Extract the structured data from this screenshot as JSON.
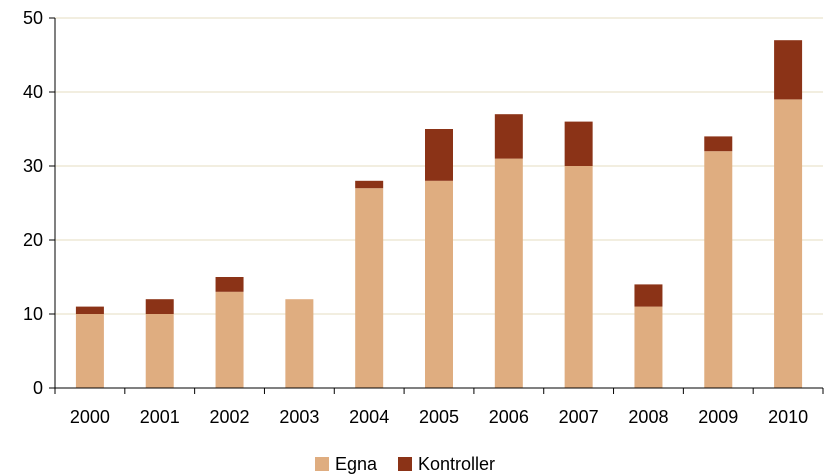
{
  "chart_data": {
    "type": "bar",
    "stacked": true,
    "categories": [
      "2000",
      "2001",
      "2002",
      "2003",
      "2004",
      "2005",
      "2006",
      "2007",
      "2008",
      "2009",
      "2010"
    ],
    "series": [
      {
        "name": "Egna",
        "color": "#dfad80",
        "values": [
          10,
          10,
          13,
          12,
          27,
          28,
          31,
          30,
          11,
          32,
          39
        ]
      },
      {
        "name": "Kontroller",
        "color": "#8b3317",
        "values": [
          1,
          2,
          2,
          0,
          1,
          7,
          6,
          6,
          3,
          2,
          8
        ]
      }
    ],
    "ylim": [
      0,
      50
    ],
    "yticks": [
      "0",
      "10",
      "20",
      "30",
      "40",
      "50"
    ],
    "grid": true,
    "gridColor": "#e4dcc0",
    "legend": "bottom"
  }
}
